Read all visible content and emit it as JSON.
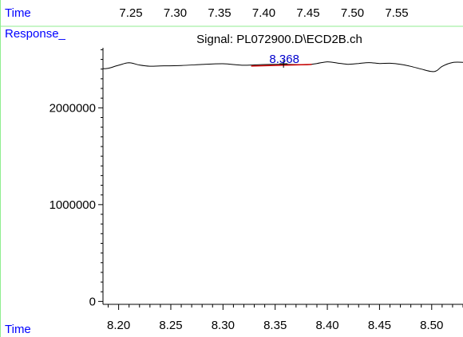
{
  "top_panel": {
    "axis_label": "Time",
    "ticks": [
      "7.25",
      "7.30",
      "7.35",
      "7.40",
      "7.45",
      "7.50",
      "7.55"
    ]
  },
  "chart_title": "Signal: PL072900.D\\ECD2B.ch",
  "colors": {
    "label_blue": "#0000ff",
    "frame_green": "#90ee90",
    "trace": "#000000",
    "baseline": "#cc0000",
    "peak_label": "#0000cc"
  },
  "chart_data": {
    "type": "line",
    "title": "Signal: PL072900.D\\ECD2B.ch",
    "xlabel": "Time",
    "ylabel": "Response_",
    "xlim": [
      8.185,
      8.53
    ],
    "ylim": [
      -30000,
      2620000
    ],
    "x_ticks": [
      "8.20",
      "8.25",
      "8.30",
      "8.35",
      "8.40",
      "8.45",
      "8.50"
    ],
    "y_ticks": [
      "0",
      "1000000",
      "2000000"
    ],
    "series": [
      {
        "x": [
          8.185,
          8.19,
          8.2,
          8.21,
          8.22,
          8.23,
          8.24,
          8.26,
          8.28,
          8.3,
          8.32,
          8.34,
          8.36,
          8.38,
          8.39,
          8.4,
          8.41,
          8.42,
          8.43,
          8.44,
          8.45,
          8.46,
          8.47,
          8.48,
          8.49,
          8.5,
          8.505,
          8.51,
          8.52,
          8.53
        ],
        "y": [
          2405000,
          2408000,
          2440000,
          2465000,
          2442000,
          2430000,
          2433000,
          2437000,
          2448000,
          2455000,
          2440000,
          2447000,
          2450000,
          2445000,
          2458000,
          2475000,
          2462000,
          2450000,
          2458000,
          2467000,
          2458000,
          2460000,
          2450000,
          2428000,
          2400000,
          2375000,
          2385000,
          2428000,
          2468000,
          2470000
        ]
      }
    ],
    "baseline": {
      "x": [
        8.327,
        8.385
      ],
      "y": [
        2432000,
        2448000
      ]
    },
    "peak": {
      "label": "8.368",
      "x": 8.358,
      "y": 2455000
    },
    "grid": false
  }
}
